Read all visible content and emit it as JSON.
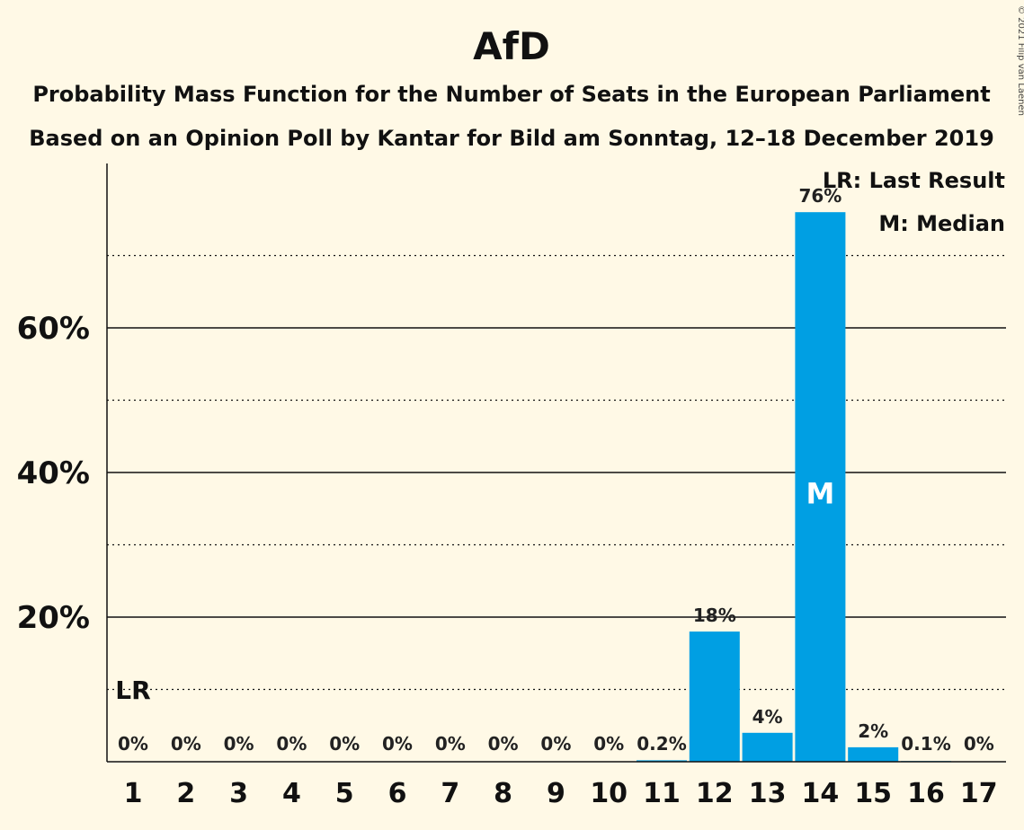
{
  "chart_data": {
    "type": "bar",
    "title": "AfD",
    "subtitle": "Probability Mass Function for the Number of Seats in the European Parliament",
    "subtitle2": "Based on an Opinion Poll by Kantar for Bild am Sonntag, 12–18 December 2019",
    "categories": [
      "1",
      "2",
      "3",
      "4",
      "5",
      "6",
      "7",
      "8",
      "9",
      "10",
      "11",
      "12",
      "13",
      "14",
      "15",
      "16",
      "17"
    ],
    "values": [
      0,
      0,
      0,
      0,
      0,
      0,
      0,
      0,
      0,
      0,
      0.2,
      18,
      4,
      76,
      2,
      0.1,
      0
    ],
    "value_labels": [
      "0%",
      "0%",
      "0%",
      "0%",
      "0%",
      "0%",
      "0%",
      "0%",
      "0%",
      "0%",
      "0.2%",
      "18%",
      "4%",
      "76%",
      "2%",
      "0.1%",
      "0%"
    ],
    "ylim": [
      0,
      82
    ],
    "yticks": [
      20,
      40,
      60
    ],
    "ytick_labels": [
      "20%",
      "40%",
      "60%"
    ],
    "minor_gridlines": [
      10,
      30,
      50,
      70
    ],
    "bar_color": "#009fe3",
    "median_index": 13,
    "median_label": "M",
    "last_result_index": 0,
    "last_result_label": "LR",
    "legend": [
      "LR: Last Result",
      "M: Median"
    ],
    "legend_position": "top-right",
    "copyright": "© 2021 Filip van Laenen"
  }
}
